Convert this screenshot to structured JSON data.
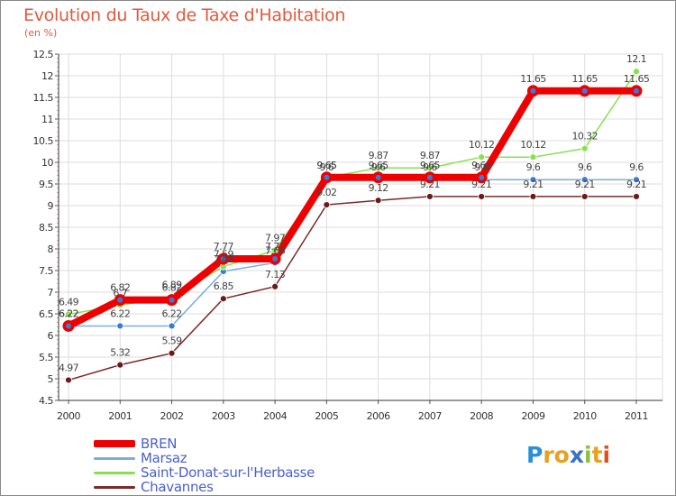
{
  "chart_data": {
    "type": "line",
    "title": "Evolution du Taux de Taxe d'Habitation",
    "unit_label": "(en %)",
    "xlabel": "",
    "ylabel": "",
    "ylim": [
      4.5,
      12.5
    ],
    "y_ticks": [
      "4.5",
      "5",
      "5.5",
      "6",
      "6.5",
      "7",
      "7.5",
      "8",
      "8.5",
      "9",
      "9.5",
      "10",
      "10.5",
      "11",
      "11.5",
      "12",
      "12.5"
    ],
    "categories": [
      "2000",
      "2001",
      "2002",
      "2003",
      "2004",
      "2005",
      "2006",
      "2007",
      "2008",
      "2009",
      "2010",
      "2011"
    ],
    "series": [
      {
        "name": "BREN",
        "color": "#ee0000",
        "values": [
          6.22,
          6.82,
          6.82,
          7.77,
          7.77,
          9.65,
          9.65,
          9.65,
          9.65,
          11.65,
          11.65,
          11.65
        ],
        "labels": [
          "6.22",
          "6.82",
          "6.82",
          "7.77",
          "7.77",
          "9.65",
          "9.65",
          "9.65",
          "9.65",
          "11.65",
          "11.65",
          "11.65"
        ]
      },
      {
        "name": "Marsaz",
        "color": "#7aaed8",
        "values": [
          6.22,
          6.22,
          6.22,
          7.48,
          7.68,
          9.6,
          9.6,
          9.6,
          9.6,
          9.6,
          9.6,
          9.6
        ],
        "labels": [
          "6.22",
          "6.22",
          "6.22",
          "7.48",
          "7.68",
          "9.6",
          "9.6",
          "9.6",
          "9.6",
          "9.6",
          "9.6",
          "9.6"
        ]
      },
      {
        "name": "Saint-Donat-sur-l'Herbasse",
        "color": "#88e050",
        "values": [
          6.49,
          6.7,
          6.89,
          7.59,
          7.97,
          9.65,
          9.87,
          9.87,
          10.12,
          10.12,
          10.32,
          12.1
        ],
        "labels": [
          "6.49",
          "6.7",
          "6.89",
          "7.59",
          "7.97",
          "9.65",
          "9.87",
          "9.87",
          "10.12",
          "10.12",
          "10.32",
          "12.1"
        ]
      },
      {
        "name": "Chavannes",
        "color": "#7a2a2a",
        "values": [
          4.97,
          5.32,
          5.59,
          6.85,
          7.13,
          9.02,
          9.12,
          9.21,
          9.21,
          9.21,
          9.21,
          9.21
        ],
        "labels": [
          "4.97",
          "5.32",
          "5.59",
          "6.85",
          "7.13",
          "9.02",
          "9.12",
          "9.21",
          "9.21",
          "9.21",
          "9.21",
          "9.21"
        ]
      }
    ]
  },
  "legend": {
    "items": [
      {
        "label": "BREN",
        "color": "#ee0000"
      },
      {
        "label": "Marsaz",
        "color": "#7aaed8"
      },
      {
        "label": "Saint-Donat-sur-l'Herbasse",
        "color": "#88e050"
      },
      {
        "label": "Chavannes",
        "color": "#7a2a2a"
      }
    ]
  },
  "logo": {
    "text": "Proxiti",
    "letters": [
      {
        "ch": "P",
        "color": "#2a8fd8"
      },
      {
        "ch": "r",
        "color": "#e8a020"
      },
      {
        "ch": "o",
        "color": "#e8a020"
      },
      {
        "ch": "x",
        "color": "#3a70c8"
      },
      {
        "ch": "i",
        "color": "#88c040"
      },
      {
        "ch": "t",
        "color": "#e8a020"
      },
      {
        "ch": "i",
        "color": "#e05020"
      }
    ]
  }
}
